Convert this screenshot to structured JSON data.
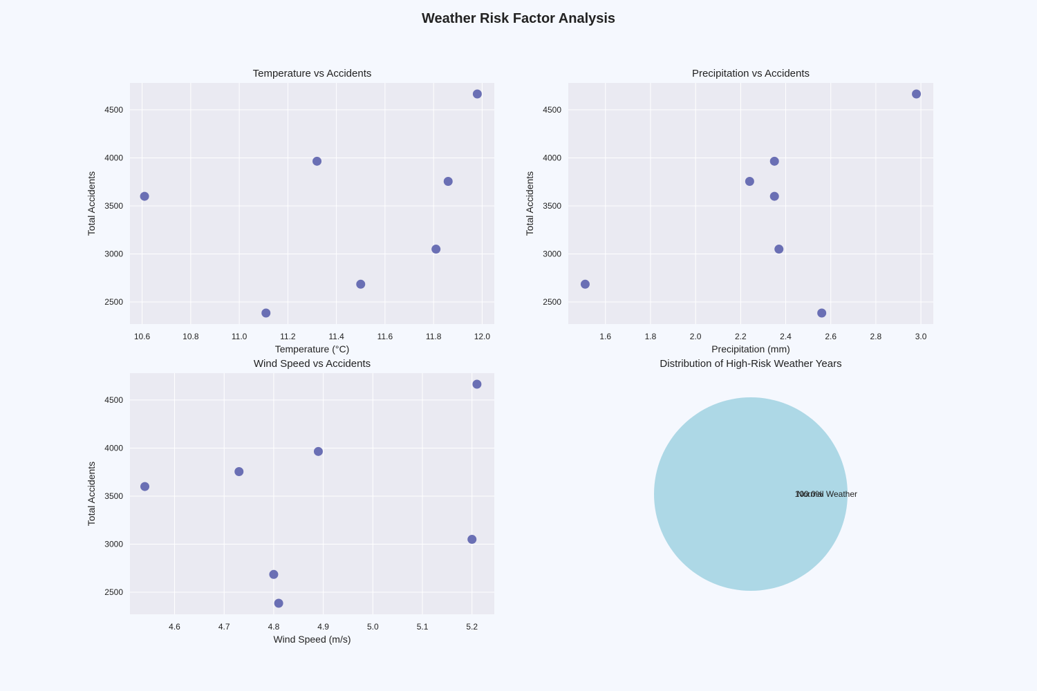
{
  "figure": {
    "title": "Weather Risk Factor Analysis",
    "colors": {
      "background": "#f5f8fe",
      "axes_bg": "#eaeaf2",
      "grid": "#ffffff",
      "marker": "#5c62ad",
      "pie": "#add8e6"
    }
  },
  "chart_data": [
    {
      "type": "scatter",
      "title": "Temperature vs Accidents",
      "xlabel": "Temperature (°C)",
      "ylabel": "Total Accidents",
      "xlim": [
        10.55,
        12.05
      ],
      "ylim": [
        2270,
        4780
      ],
      "xticks": [
        "10.6",
        "10.8",
        "11.0",
        "11.2",
        "11.4",
        "11.6",
        "11.8",
        "12.0"
      ],
      "yticks": [
        "2500",
        "3000",
        "3500",
        "4000",
        "4500"
      ],
      "grid": true,
      "points": [
        {
          "x": 10.61,
          "y": 3600
        },
        {
          "x": 11.11,
          "y": 2385
        },
        {
          "x": 11.32,
          "y": 3965
        },
        {
          "x": 11.5,
          "y": 2685
        },
        {
          "x": 11.81,
          "y": 3050
        },
        {
          "x": 11.86,
          "y": 3755
        },
        {
          "x": 11.98,
          "y": 4665
        }
      ]
    },
    {
      "type": "scatter",
      "title": "Precipitation vs Accidents",
      "xlabel": "Precipitation (mm)",
      "ylabel": "Total Accidents",
      "xlim": [
        1.435,
        3.055
      ],
      "ylim": [
        2270,
        4780
      ],
      "xticks": [
        "1.6",
        "1.8",
        "2.0",
        "2.2",
        "2.4",
        "2.6",
        "2.8",
        "3.0"
      ],
      "yticks": [
        "2500",
        "3000",
        "3500",
        "4000",
        "4500"
      ],
      "grid": true,
      "points": [
        {
          "x": 1.51,
          "y": 2685
        },
        {
          "x": 2.24,
          "y": 3755
        },
        {
          "x": 2.35,
          "y": 3965
        },
        {
          "x": 2.35,
          "y": 3600
        },
        {
          "x": 2.37,
          "y": 3050
        },
        {
          "x": 2.56,
          "y": 2385
        },
        {
          "x": 2.98,
          "y": 4665
        }
      ]
    },
    {
      "type": "scatter",
      "title": "Wind Speed vs Accidents",
      "xlabel": "Wind Speed (m/s)",
      "ylabel": "Total Accidents",
      "xlim": [
        4.51,
        5.245
      ],
      "ylim": [
        2270,
        4780
      ],
      "xticks": [
        "4.6",
        "4.7",
        "4.8",
        "4.9",
        "5.0",
        "5.1",
        "5.2"
      ],
      "yticks": [
        "2500",
        "3000",
        "3500",
        "4000",
        "4500"
      ],
      "grid": true,
      "points": [
        {
          "x": 4.54,
          "y": 3600
        },
        {
          "x": 4.73,
          "y": 3755
        },
        {
          "x": 4.8,
          "y": 2685
        },
        {
          "x": 4.81,
          "y": 2385
        },
        {
          "x": 4.89,
          "y": 3965
        },
        {
          "x": 5.2,
          "y": 3050
        },
        {
          "x": 5.21,
          "y": 4665
        }
      ]
    },
    {
      "type": "pie",
      "title": "Distribution of High-Risk Weather Years",
      "slices": [
        {
          "label": "Normal Weather",
          "value": 100,
          "pct_label": "100.0%"
        }
      ]
    }
  ]
}
